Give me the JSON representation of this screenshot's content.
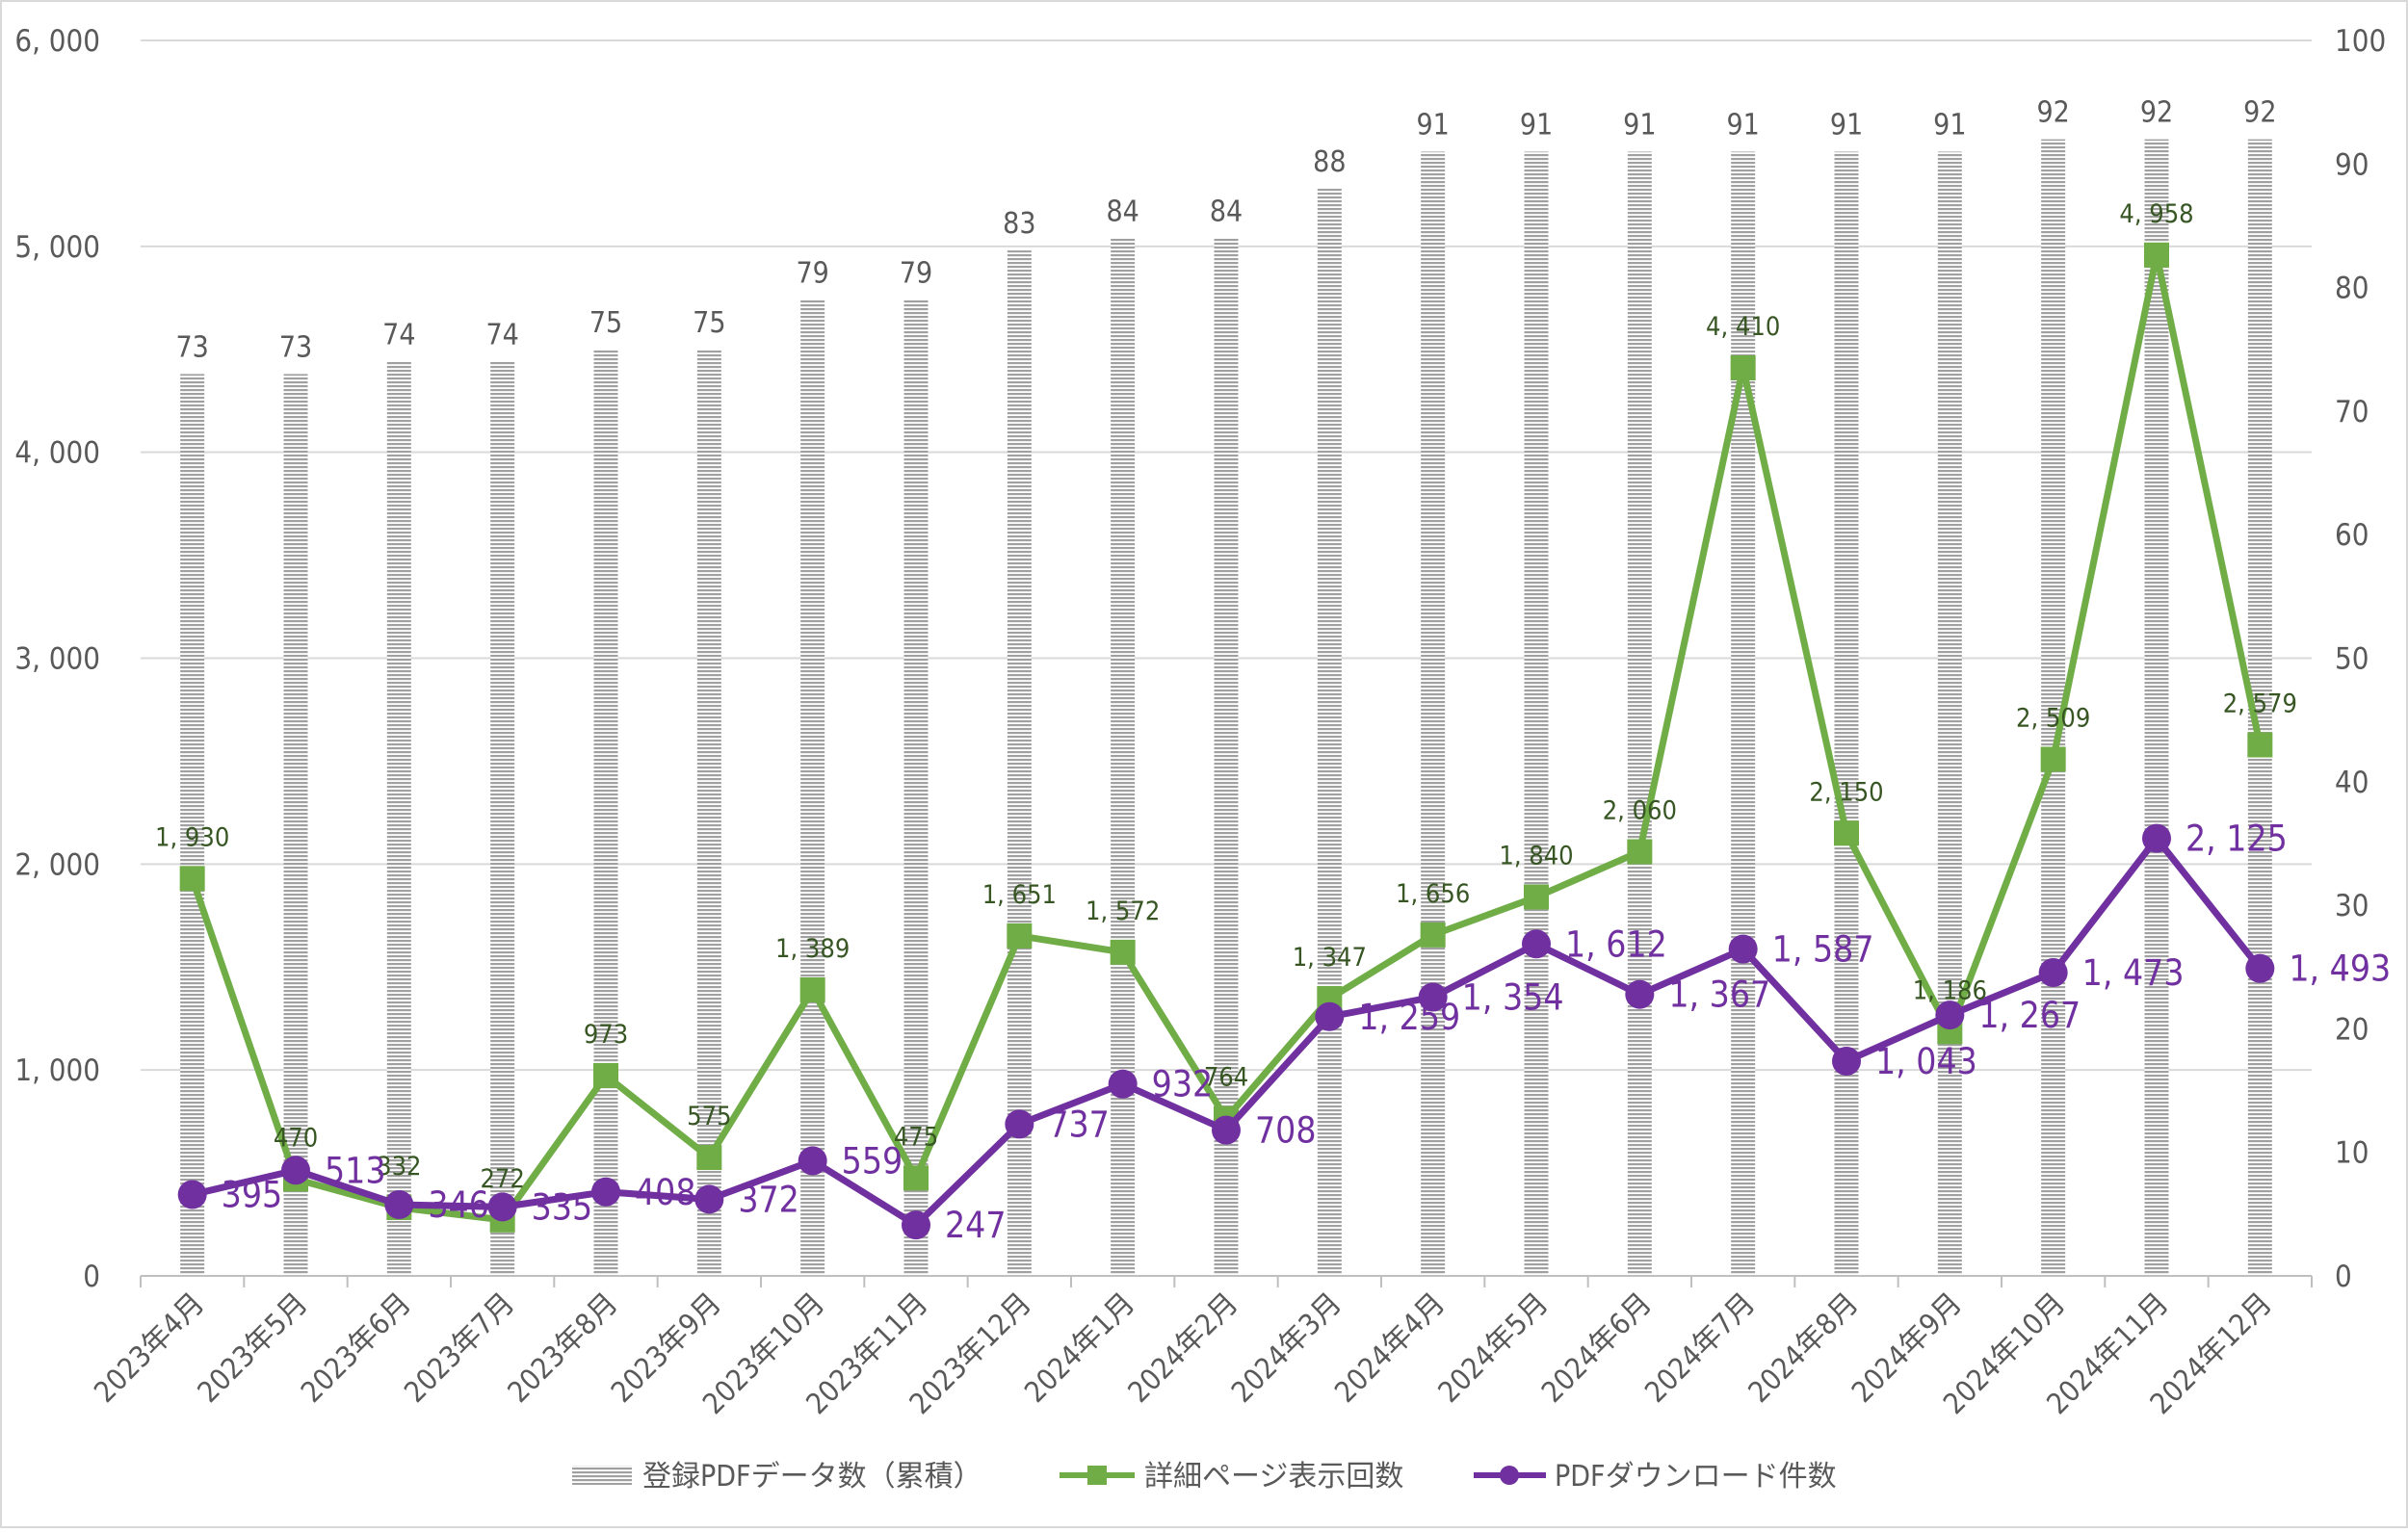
{
  "chart_data": {
    "type": "bar+line",
    "categories": [
      "2023年4月",
      "2023年5月",
      "2023年6月",
      "2023年7月",
      "2023年8月",
      "2023年9月",
      "2023年10月",
      "2023年11月",
      "2023年12月",
      "2024年1月",
      "2024年2月",
      "2024年3月",
      "2024年4月",
      "2024年5月",
      "2024年6月",
      "2024年7月",
      "2024年8月",
      "2024年9月",
      "2024年10月",
      "2024年11月",
      "2024年12月"
    ],
    "series": [
      {
        "name": "登録PDFデータ数（累積）",
        "kind": "bar",
        "axis": "right",
        "color": "#a6a6a6",
        "values": [
          73,
          73,
          74,
          74,
          75,
          75,
          79,
          79,
          83,
          84,
          84,
          88,
          91,
          91,
          91,
          91,
          91,
          91,
          92,
          92,
          92
        ]
      },
      {
        "name": "詳細ページ表示回数",
        "kind": "line",
        "marker": "square",
        "axis": "left",
        "color": "#70ad47",
        "label_color": "#375623",
        "values": [
          1930,
          470,
          332,
          272,
          973,
          575,
          1389,
          475,
          1651,
          1572,
          764,
          1347,
          1656,
          1840,
          2060,
          4410,
          2150,
          1186,
          2509,
          4958,
          2579
        ]
      },
      {
        "name": "PDFダウンロード件数",
        "kind": "line",
        "marker": "circle",
        "axis": "left",
        "color": "#7030a0",
        "label_color": "#7030a0",
        "values": [
          395,
          513,
          346,
          335,
          408,
          372,
          559,
          247,
          737,
          932,
          708,
          1259,
          1354,
          1612,
          1367,
          1587,
          1043,
          1267,
          1473,
          2125,
          1493
        ]
      }
    ],
    "y_left": {
      "min": 0,
      "max": 6000,
      "ticks": [
        0,
        1000,
        2000,
        3000,
        4000,
        5000,
        6000
      ]
    },
    "y_right": {
      "min": 0,
      "max": 100,
      "ticks": [
        0,
        10,
        20,
        30,
        40,
        50,
        60,
        70,
        80,
        90,
        100
      ]
    },
    "grid": true,
    "legend_position": "bottom"
  }
}
